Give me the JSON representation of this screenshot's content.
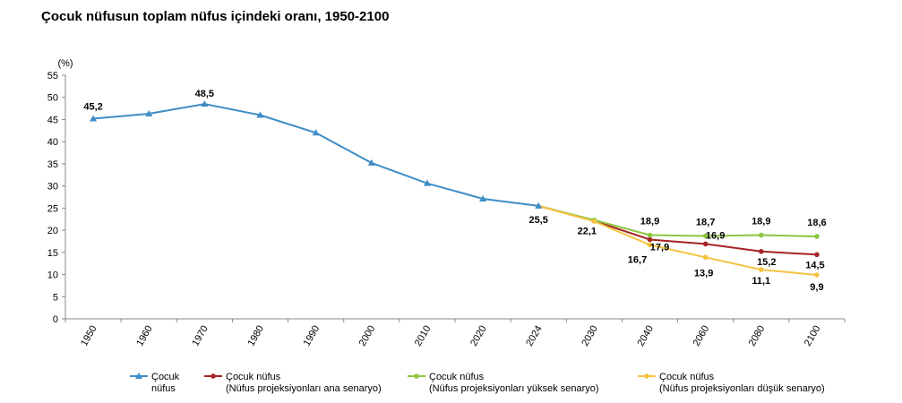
{
  "title": "Çocuk nüfusun toplam nüfus içindeki oranı, 1950-2100",
  "chart_data": {
    "type": "line",
    "unit_label": "(%)",
    "ylim": [
      0,
      55
    ],
    "yticks": [
      0,
      5,
      10,
      15,
      20,
      25,
      30,
      35,
      40,
      45,
      50,
      55
    ],
    "categories": [
      "1950",
      "1960",
      "1970",
      "1980",
      "1990",
      "2000",
      "2010",
      "2020",
      "2024",
      "2030",
      "2040",
      "2060",
      "2080",
      "2100"
    ],
    "grid": false,
    "legend_position": "bottom",
    "series": [
      {
        "name_lines": [
          "Çocuk",
          "nüfus"
        ],
        "color": "#3E8DC6",
        "marker": "triangle",
        "values": [
          45.2,
          46.3,
          48.5,
          46.0,
          42.0,
          35.2,
          30.6,
          27.1,
          25.5,
          null,
          null,
          null,
          null,
          null
        ],
        "labels": {
          "0": "45,2",
          "2": "48,5",
          "8": "25,5"
        }
      },
      {
        "name_lines": [
          "Çocuk nüfus",
          "(Nüfus projeksiyonları ana senaryo)"
        ],
        "color": "#A52424",
        "marker": "circle",
        "values": [
          null,
          null,
          null,
          null,
          null,
          null,
          null,
          null,
          25.5,
          22.1,
          17.9,
          16.9,
          15.2,
          14.5
        ],
        "labels": {
          "9": "22,1",
          "10": "17,9",
          "11": "16,9",
          "12": "15,2",
          "13": "14,5"
        }
      },
      {
        "name_lines": [
          "Çocuk nüfus",
          "(Nüfus projeksiyonları yüksek senaryo)"
        ],
        "color": "#8CC63E",
        "marker": "circle",
        "values": [
          null,
          null,
          null,
          null,
          null,
          null,
          null,
          null,
          25.5,
          22.3,
          18.9,
          18.7,
          18.9,
          18.6
        ],
        "labels": {
          "10": "18,9",
          "11": "18,7",
          "12": "18,9",
          "13": "18,6"
        }
      },
      {
        "name_lines": [
          "Çocuk nüfus",
          "(Nüfus projeksiyonları düşük senaryo)"
        ],
        "color": "#F5C342",
        "marker": "circle",
        "values": [
          null,
          null,
          null,
          null,
          null,
          null,
          null,
          null,
          25.5,
          22.0,
          16.7,
          13.9,
          11.1,
          9.9
        ],
        "labels": {
          "10": "16,7",
          "11": "13,9",
          "12": "11,1",
          "13": "9,9"
        }
      }
    ]
  }
}
